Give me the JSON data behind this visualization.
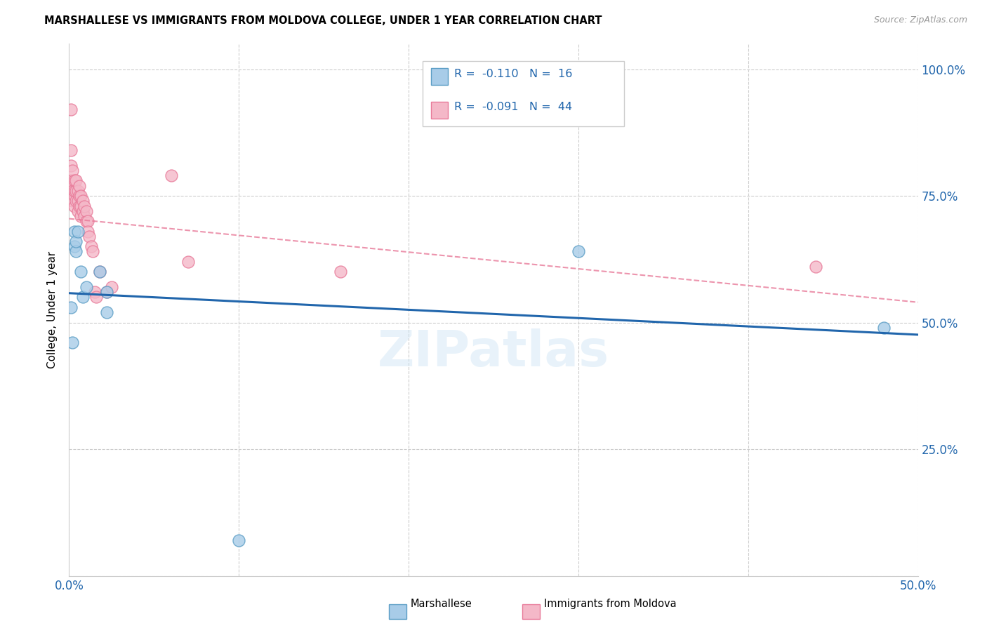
{
  "title": "MARSHALLESE VS IMMIGRANTS FROM MOLDOVA COLLEGE, UNDER 1 YEAR CORRELATION CHART",
  "source": "Source: ZipAtlas.com",
  "ylabel": "College, Under 1 year",
  "xlabel": "",
  "xlim": [
    0.0,
    0.5
  ],
  "ylim": [
    0.0,
    1.05
  ],
  "yticks": [
    0.0,
    0.25,
    0.5,
    0.75,
    1.0
  ],
  "ytick_labels": [
    "",
    "25.0%",
    "50.0%",
    "75.0%",
    "100.0%"
  ],
  "xticks": [
    0.0,
    0.1,
    0.2,
    0.3,
    0.4,
    0.5
  ],
  "xtick_labels": [
    "0.0%",
    "",
    "",
    "",
    "",
    "50.0%"
  ],
  "blue_scatter_x": [
    0.001,
    0.002,
    0.003,
    0.003,
    0.004,
    0.004,
    0.005,
    0.007,
    0.008,
    0.01,
    0.018,
    0.022,
    0.022,
    0.3,
    0.48,
    0.1
  ],
  "blue_scatter_y": [
    0.53,
    0.46,
    0.68,
    0.65,
    0.64,
    0.66,
    0.68,
    0.6,
    0.55,
    0.57,
    0.6,
    0.56,
    0.52,
    0.64,
    0.49,
    0.07
  ],
  "pink_scatter_x": [
    0.001,
    0.001,
    0.001,
    0.001,
    0.002,
    0.002,
    0.002,
    0.002,
    0.003,
    0.003,
    0.003,
    0.003,
    0.004,
    0.004,
    0.004,
    0.005,
    0.005,
    0.005,
    0.006,
    0.006,
    0.006,
    0.007,
    0.007,
    0.007,
    0.008,
    0.008,
    0.009,
    0.009,
    0.01,
    0.01,
    0.011,
    0.011,
    0.012,
    0.013,
    0.014,
    0.015,
    0.016,
    0.018,
    0.022,
    0.025,
    0.06,
    0.07,
    0.16,
    0.44
  ],
  "pink_scatter_y": [
    0.92,
    0.84,
    0.78,
    0.81,
    0.8,
    0.77,
    0.74,
    0.76,
    0.75,
    0.73,
    0.76,
    0.78,
    0.74,
    0.76,
    0.78,
    0.74,
    0.72,
    0.76,
    0.73,
    0.75,
    0.77,
    0.73,
    0.75,
    0.71,
    0.72,
    0.74,
    0.71,
    0.73,
    0.7,
    0.72,
    0.7,
    0.68,
    0.67,
    0.65,
    0.64,
    0.56,
    0.55,
    0.6,
    0.56,
    0.57,
    0.79,
    0.62,
    0.6,
    0.61
  ],
  "blue_line_x": [
    0.0,
    0.5
  ],
  "blue_line_y": [
    0.558,
    0.476
  ],
  "pink_line_x": [
    0.0,
    0.5
  ],
  "pink_line_y": [
    0.705,
    0.54
  ],
  "blue_color": "#a8cce8",
  "pink_color": "#f4b8c8",
  "blue_edge": "#5a9dc5",
  "pink_edge": "#e87a99",
  "blue_line_color": "#2166ac",
  "pink_line_color": "#e87a99",
  "legend_r_blue": "-0.110",
  "legend_n_blue": "16",
  "legend_r_pink": "-0.091",
  "legend_n_pink": "44",
  "grid_color": "#cccccc",
  "watermark": "ZIPatlas",
  "title_fontsize": 11,
  "axis_color": "#2166ac"
}
